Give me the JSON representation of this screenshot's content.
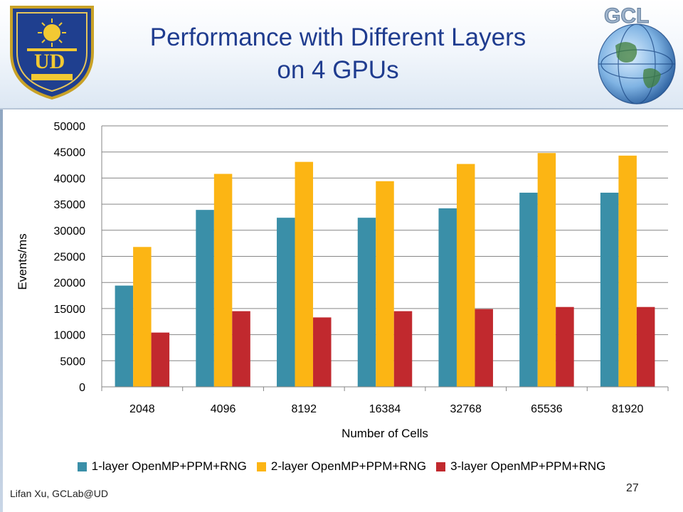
{
  "slide": {
    "title_line1": "Performance with Different Layers",
    "title_line2": "on 4 GPUs",
    "footer": "Lifan Xu, GCLab@UD",
    "page_number": "27",
    "logo_left": "university-of-delaware-seal",
    "logo_right": "gcl-globe"
  },
  "chart_data": {
    "type": "bar",
    "title": "",
    "xlabel": "Number of Cells",
    "ylabel": "Events/ms",
    "categories": [
      "2048",
      "4096",
      "8192",
      "16384",
      "32768",
      "65536",
      "81920"
    ],
    "ylim": [
      0,
      50000
    ],
    "yticks": [
      0,
      5000,
      10000,
      15000,
      20000,
      25000,
      30000,
      35000,
      40000,
      45000,
      50000
    ],
    "grid": true,
    "legend_position": "bottom",
    "series": [
      {
        "name": "1-layer OpenMP+PPM+RNG",
        "color": "#3a8fa8",
        "values": [
          19400,
          33900,
          32400,
          32400,
          34200,
          37200,
          37200
        ]
      },
      {
        "name": "2-layer OpenMP+PPM+RNG",
        "color": "#fcb514",
        "values": [
          26800,
          40800,
          43100,
          39400,
          42700,
          44800,
          44300
        ]
      },
      {
        "name": "3-layer OpenMP+PPM+RNG",
        "color": "#c1292e",
        "values": [
          10400,
          14500,
          13300,
          14500,
          14900,
          15300,
          15300
        ]
      }
    ]
  }
}
